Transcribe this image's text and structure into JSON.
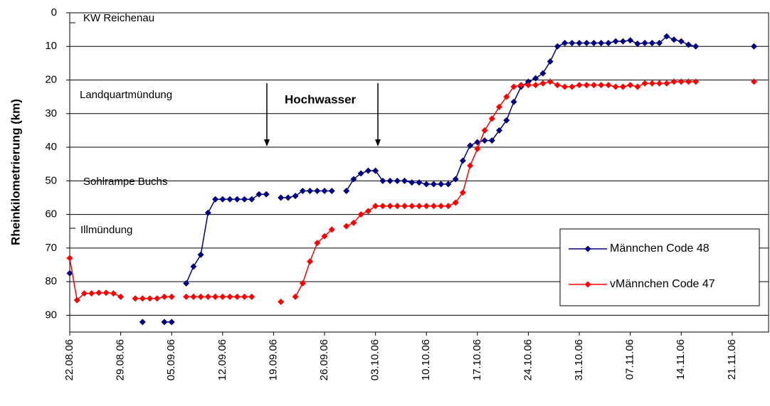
{
  "chart_data": {
    "type": "line",
    "y_label": "Rheinkilometrierung (km)",
    "x": [
      "22.08.06",
      "23.08.06",
      "24.08.06",
      "25.08.06",
      "26.08.06",
      "27.08.06",
      "28.08.06",
      "29.08.06",
      "30.08.06",
      "31.08.06",
      "01.09.06",
      "02.09.06",
      "03.09.06",
      "04.09.06",
      "05.09.06",
      "06.09.06",
      "07.09.06",
      "08.09.06",
      "09.09.06",
      "10.09.06",
      "11.09.06",
      "12.09.06",
      "13.09.06",
      "14.09.06",
      "15.09.06",
      "16.09.06",
      "17.09.06",
      "18.09.06",
      "19.09.06",
      "20.09.06",
      "21.09.06",
      "22.09.06",
      "23.09.06",
      "24.09.06",
      "25.09.06",
      "26.09.06",
      "27.09.06",
      "28.09.06",
      "29.09.06",
      "30.09.06",
      "01.10.06",
      "02.10.06",
      "03.10.06",
      "04.10.06",
      "05.10.06",
      "06.10.06",
      "07.10.06",
      "08.10.06",
      "09.10.06",
      "10.10.06",
      "11.10.06",
      "12.10.06",
      "13.10.06",
      "14.10.06",
      "15.10.06",
      "16.10.06",
      "17.10.06",
      "18.10.06",
      "19.10.06",
      "20.10.06",
      "21.10.06",
      "22.10.06",
      "23.10.06",
      "24.10.06",
      "25.10.06",
      "26.10.06",
      "27.10.06",
      "28.10.06",
      "29.10.06",
      "30.10.06",
      "31.10.06",
      "01.11.06",
      "02.11.06",
      "03.11.06",
      "04.11.06",
      "05.11.06",
      "06.11.06",
      "07.11.06",
      "08.11.06",
      "09.11.06",
      "10.11.06",
      "11.11.06",
      "12.11.06",
      "13.11.06",
      "14.11.06",
      "15.11.06",
      "16.11.06",
      "17.11.06",
      "18.11.06",
      "19.11.06",
      "20.11.06",
      "21.11.06",
      "22.11.06",
      "23.11.06",
      "24.11.06"
    ],
    "series": [
      {
        "name": "Männchen Code 48",
        "color": "#000080",
        "values": [
          77.5,
          null,
          null,
          null,
          null,
          null,
          null,
          null,
          null,
          null,
          92,
          null,
          null,
          92,
          92,
          null,
          80.5,
          75.5,
          72,
          59.5,
          55.5,
          55.5,
          55.5,
          55.5,
          55.5,
          55.5,
          54,
          54,
          null,
          55,
          55,
          54.5,
          53,
          53,
          53,
          53,
          53,
          null,
          53,
          49.5,
          47.8,
          47,
          47,
          50,
          50,
          50,
          50,
          50.5,
          50.5,
          51,
          51,
          51,
          51,
          49.5,
          44,
          39.5,
          38.5,
          38,
          38,
          35,
          32,
          26.5,
          22,
          20.5,
          19.5,
          18,
          14.5,
          10,
          9,
          9,
          9,
          9,
          9,
          9,
          9,
          8.5,
          8.5,
          8.2,
          9.2,
          9,
          9,
          9,
          7,
          8,
          8.5,
          9.5,
          10,
          null,
          null,
          null,
          null,
          null,
          null,
          null,
          10
        ]
      },
      {
        "name": "vMännchen Code 47",
        "color": "#ff0000",
        "values": [
          73,
          85.5,
          83.5,
          83.5,
          83.3,
          83.3,
          83.5,
          84.5,
          null,
          85,
          85,
          85,
          85,
          84.5,
          84.5,
          null,
          84.5,
          84.5,
          84.5,
          84.5,
          84.5,
          84.5,
          84.5,
          84.5,
          84.5,
          84.5,
          null,
          null,
          null,
          86,
          null,
          84.5,
          80.5,
          74,
          68.5,
          66.5,
          64.5,
          null,
          63.5,
          62.5,
          60,
          59,
          57.5,
          57.5,
          57.5,
          57.5,
          57.5,
          57.5,
          57.5,
          57.5,
          57.5,
          57.5,
          57.5,
          56.5,
          53.5,
          45.5,
          40.5,
          35,
          31.5,
          28,
          25,
          22,
          21.5,
          21.5,
          21.5,
          21,
          20.5,
          21.5,
          22,
          22,
          21.5,
          21.5,
          21.5,
          21.5,
          21.5,
          22,
          22,
          21.5,
          22,
          21,
          21,
          21,
          21,
          20.5,
          20.5,
          20.5,
          20.5,
          null,
          null,
          null,
          null,
          null,
          null,
          null,
          20.5
        ]
      }
    ],
    "xlim": [
      "22.08.06",
      "26.11.06"
    ],
    "xticks": [
      "22.08.06",
      "29.08.06",
      "05.09.06",
      "12.09.06",
      "19.09.06",
      "26.09.06",
      "03.10.06",
      "10.10.06",
      "17.10.06",
      "24.10.06",
      "31.10.06",
      "07.11.06",
      "14.11.06",
      "21.11.06"
    ],
    "ylim": [
      0,
      95
    ],
    "y_inverted": true,
    "yticks": [
      0,
      10,
      20,
      30,
      40,
      50,
      60,
      70,
      80,
      90
    ],
    "grid": true,
    "legend_position": "lower-right",
    "annotations": [
      "KW Reichenau",
      "Landquartmündung",
      "Sohlrampe Buchs",
      "Illmündung",
      "Hochwasser"
    ]
  }
}
